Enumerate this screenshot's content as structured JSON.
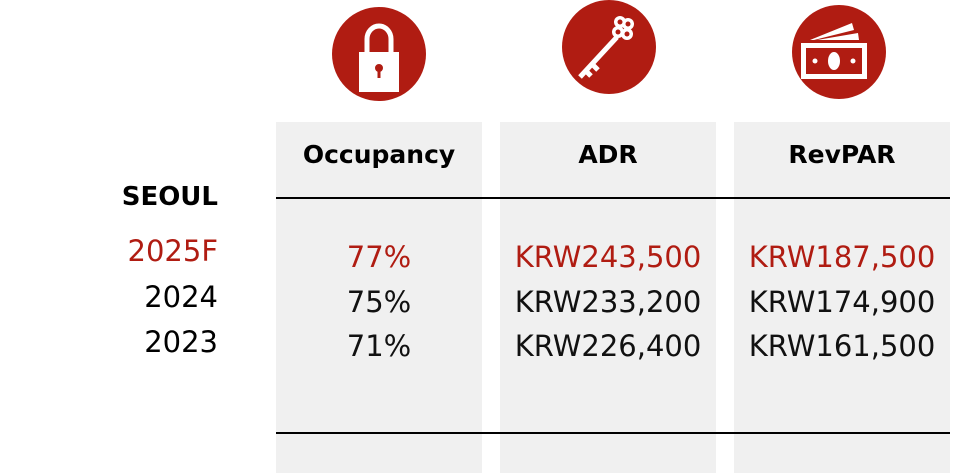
{
  "city": "SEOUL",
  "accent": "#b01c12",
  "icons": [
    "lock-icon",
    "key-icon",
    "money-icon"
  ],
  "columns": [
    {
      "header": "Occupancy",
      "values": [
        "77%",
        "75%",
        "71%"
      ]
    },
    {
      "header": "ADR",
      "values": [
        "KRW243,500",
        "KRW233,200",
        "KRW226,400"
      ]
    },
    {
      "header": "RevPAR",
      "values": [
        "KRW187,500",
        "KRW174,900",
        "KRW161,500"
      ]
    }
  ],
  "years": [
    "2025F",
    "2024",
    "2023"
  ]
}
